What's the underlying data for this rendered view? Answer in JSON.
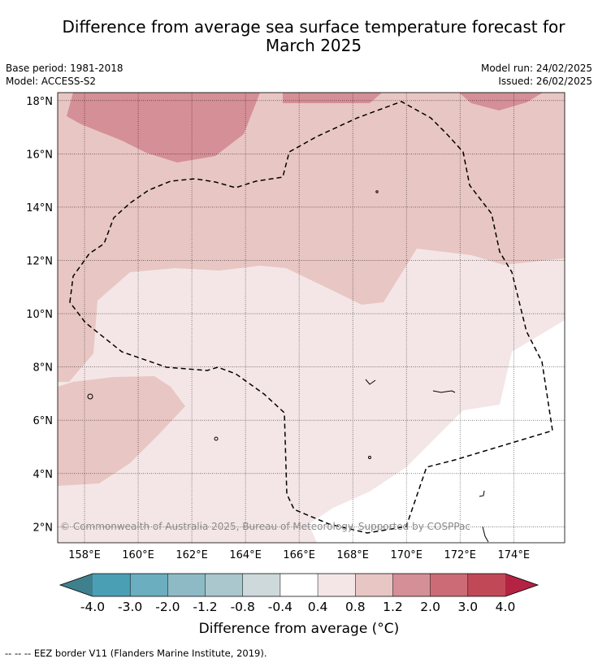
{
  "title_line1": "Difference from average sea surface temperature forecast for",
  "title_line2": "March 2025",
  "meta_left": [
    "Base period: 1981-2018",
    "Model: ACCESS-S2"
  ],
  "meta_right": [
    "Model run: 24/02/2025",
    "Issued: 26/02/2025"
  ],
  "attribution": "© Commonwealth of Australia 2025, Bureau of Meteorology. Supported by COSPPac",
  "colorbar_label": "Difference from average (°C)",
  "footnote": "-- -- -- EEZ border V11 (Flanders Marine Institute, 2019).",
  "map_data": {
    "lon_range": [
      157.0,
      175.9
    ],
    "lat_range": [
      1.4,
      18.3
    ],
    "lat_ticks": [
      "2°N",
      "4°N",
      "6°N",
      "8°N",
      "10°N",
      "12°N",
      "14°N",
      "16°N",
      "18°N"
    ],
    "lon_ticks": [
      "158°E",
      "160°E",
      "162°E",
      "164°E",
      "166°E",
      "168°E",
      "170°E",
      "172°E",
      "174°E"
    ],
    "colorbar": {
      "tick_labels": [
        "-4.0",
        "-3.0",
        "-2.0",
        "-1.2",
        "-0.8",
        "-0.4",
        "0.4",
        "0.8",
        "1.2",
        "2.0",
        "3.0",
        "4.0"
      ],
      "colors": [
        "#4a9fb4",
        "#6aaec0",
        "#8ebac6",
        "#a9c7cc",
        "#cdd9db",
        "#ffffff",
        "#f4e6e6",
        "#e8c6c3",
        "#d58f96",
        "#cc6b76",
        "#c04857"
      ],
      "under_color": "#3f808e",
      "over_color": "#b42342"
    },
    "regions": [
      {
        "name": "0.4 to 0.8",
        "color": "#f4e6e6"
      },
      {
        "name": "0.8 to 1.2",
        "color": "#e8c6c3"
      },
      {
        "name": "1.2 to 2.0",
        "color": "#d58f96"
      }
    ]
  }
}
